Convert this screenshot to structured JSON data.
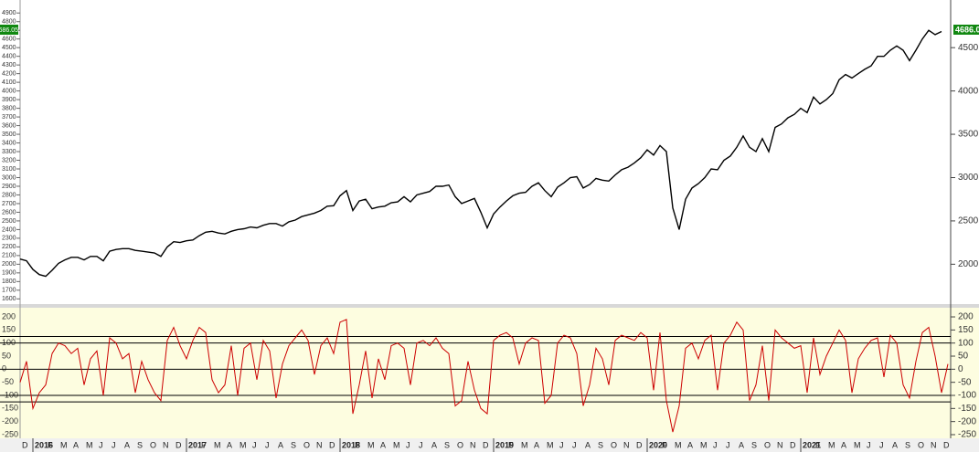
{
  "chart_data": [
    {
      "type": "line",
      "color": "#000000",
      "ylim": [
        1540,
        5050
      ],
      "yticks": [
        1600,
        1700,
        1800,
        1900,
        2000,
        2100,
        2200,
        2300,
        2400,
        2500,
        2600,
        2700,
        2800,
        2900,
        3000,
        3100,
        3200,
        3300,
        3400,
        3500,
        3600,
        3700,
        3800,
        3900,
        4000,
        4100,
        4200,
        4300,
        4400,
        4500,
        4600,
        4700,
        4800,
        4900
      ],
      "y2ticks": [
        2000,
        2500,
        3000,
        3500,
        4000,
        4500
      ],
      "last_label": "4686.05",
      "values": [
        2060,
        2040,
        1940,
        1880,
        1860,
        1930,
        2010,
        2050,
        2080,
        2080,
        2050,
        2090,
        2090,
        2040,
        2150,
        2170,
        2180,
        2180,
        2160,
        2150,
        2140,
        2130,
        2090,
        2200,
        2260,
        2250,
        2270,
        2280,
        2330,
        2370,
        2380,
        2360,
        2350,
        2380,
        2400,
        2410,
        2430,
        2420,
        2450,
        2470,
        2470,
        2440,
        2490,
        2510,
        2550,
        2570,
        2590,
        2620,
        2670,
        2675,
        2790,
        2850,
        2620,
        2730,
        2750,
        2640,
        2660,
        2670,
        2710,
        2720,
        2780,
        2720,
        2800,
        2820,
        2840,
        2900,
        2900,
        2915,
        2780,
        2700,
        2730,
        2760,
        2600,
        2420,
        2580,
        2660,
        2730,
        2790,
        2820,
        2830,
        2900,
        2940,
        2850,
        2780,
        2890,
        2940,
        3000,
        3010,
        2880,
        2920,
        2990,
        2970,
        2960,
        3030,
        3090,
        3120,
        3170,
        3230,
        3320,
        3260,
        3370,
        3300,
        2650,
        2400,
        2750,
        2880,
        2930,
        3000,
        3100,
        3090,
        3200,
        3250,
        3350,
        3480,
        3350,
        3300,
        3450,
        3300,
        3580,
        3620,
        3690,
        3730,
        3800,
        3750,
        3930,
        3850,
        3900,
        3970,
        4130,
        4190,
        4150,
        4200,
        4250,
        4290,
        4400,
        4400,
        4470,
        4520,
        4470,
        4350,
        4470,
        4600,
        4700,
        4650,
        4686.05
      ]
    },
    {
      "type": "line",
      "color": "#cc0000",
      "ylim": [
        -264,
        235
      ],
      "yticks": [
        -250,
        -200,
        -150,
        -100,
        -50,
        0,
        50,
        100,
        150,
        200
      ],
      "reference_lines": [
        125,
        100,
        0,
        -100,
        -125
      ],
      "values": [
        -50,
        30,
        -150,
        -90,
        -60,
        60,
        100,
        90,
        60,
        80,
        -60,
        40,
        70,
        -100,
        120,
        100,
        40,
        60,
        -90,
        30,
        -40,
        -90,
        -120,
        110,
        160,
        90,
        40,
        110,
        160,
        140,
        -40,
        -90,
        -60,
        90,
        -100,
        80,
        100,
        -40,
        110,
        70,
        -110,
        20,
        90,
        120,
        150,
        110,
        -20,
        90,
        120,
        60,
        180,
        190,
        -170,
        -60,
        70,
        -110,
        40,
        -40,
        90,
        100,
        80,
        -60,
        100,
        110,
        90,
        120,
        80,
        60,
        -140,
        -120,
        30,
        -80,
        -150,
        -170,
        110,
        130,
        140,
        120,
        20,
        100,
        120,
        110,
        -130,
        -100,
        100,
        130,
        120,
        60,
        -140,
        -60,
        80,
        40,
        -60,
        110,
        130,
        120,
        110,
        140,
        120,
        -80,
        140,
        -120,
        -240,
        -140,
        80,
        100,
        40,
        110,
        130,
        -80,
        100,
        130,
        180,
        150,
        -120,
        -60,
        90,
        -120,
        150,
        120,
        100,
        80,
        90,
        -90,
        120,
        -20,
        50,
        100,
        150,
        110,
        -90,
        40,
        80,
        110,
        120,
        -30,
        130,
        100,
        -60,
        -110,
        30,
        140,
        160,
        50,
        -90,
        20
      ]
    }
  ],
  "x_axis": {
    "labels": [
      "D",
      "2016",
      "F",
      "M",
      "A",
      "M",
      "J",
      "J",
      "A",
      "S",
      "O",
      "N",
      "D",
      "2017",
      "F",
      "M",
      "A",
      "M",
      "J",
      "J",
      "A",
      "S",
      "O",
      "N",
      "D",
      "2018",
      "F",
      "M",
      "A",
      "M",
      "J",
      "J",
      "A",
      "S",
      "O",
      "N",
      "D",
      "2019",
      "F",
      "M",
      "A",
      "M",
      "J",
      "J",
      "A",
      "S",
      "O",
      "N",
      "D",
      "2020",
      "F",
      "M",
      "A",
      "M",
      "J",
      "J",
      "A",
      "S",
      "O",
      "N",
      "D",
      "2021",
      "F",
      "M",
      "A",
      "M",
      "J",
      "J",
      "A",
      "S",
      "O",
      "N",
      "D"
    ]
  }
}
